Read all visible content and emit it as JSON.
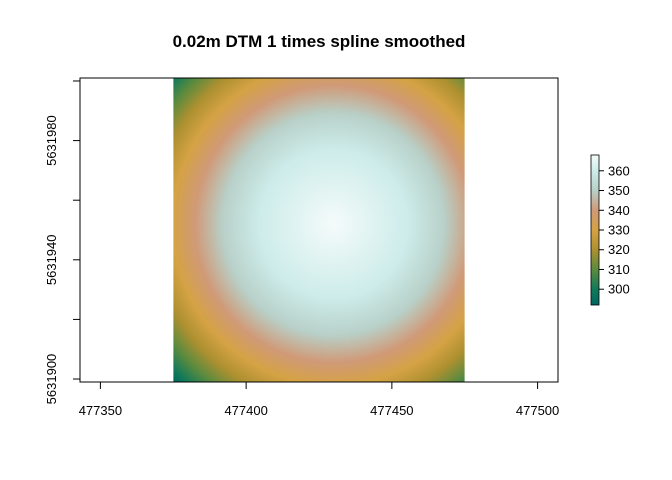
{
  "chart_data": {
    "type": "heatmap",
    "title": "0.02m  DTM 1 times spline smoothed",
    "xlabel": "",
    "ylabel": "",
    "x_ticks": [
      477350,
      477400,
      477450,
      477500
    ],
    "y_ticks": [
      5631900,
      5631920,
      5631940,
      5631960,
      5631980,
      5632000
    ],
    "y_tick_labels": [
      "5631900",
      "",
      "5631940",
      "",
      "5631980",
      ""
    ],
    "xlim": [
      477343,
      477507
    ],
    "ylim": [
      5631899,
      5632001
    ],
    "raster_extent": {
      "x": [
        477375,
        477475
      ],
      "y": [
        5631899,
        5632001
      ]
    },
    "surface": {
      "shape": "radially symmetric dome",
      "center": [
        477430,
        5631952
      ],
      "value_at_center": 368,
      "value_at_corners": 294
    },
    "legend": {
      "type": "colorbar",
      "position": "right",
      "min": 292,
      "max": 368,
      "ticks": [
        300,
        310,
        320,
        330,
        340,
        350,
        360
      ],
      "palette_stops": [
        {
          "value": 292,
          "color": "#00665e"
        },
        {
          "value": 300,
          "color": "#127a5a"
        },
        {
          "value": 310,
          "color": "#5c8b3e"
        },
        {
          "value": 320,
          "color": "#ad9030"
        },
        {
          "value": 330,
          "color": "#d5a244"
        },
        {
          "value": 340,
          "color": "#d09a78"
        },
        {
          "value": 350,
          "color": "#b8d0c8"
        },
        {
          "value": 360,
          "color": "#cdecea"
        },
        {
          "value": 368,
          "color": "#f4fbfa"
        }
      ]
    },
    "grid": false
  }
}
